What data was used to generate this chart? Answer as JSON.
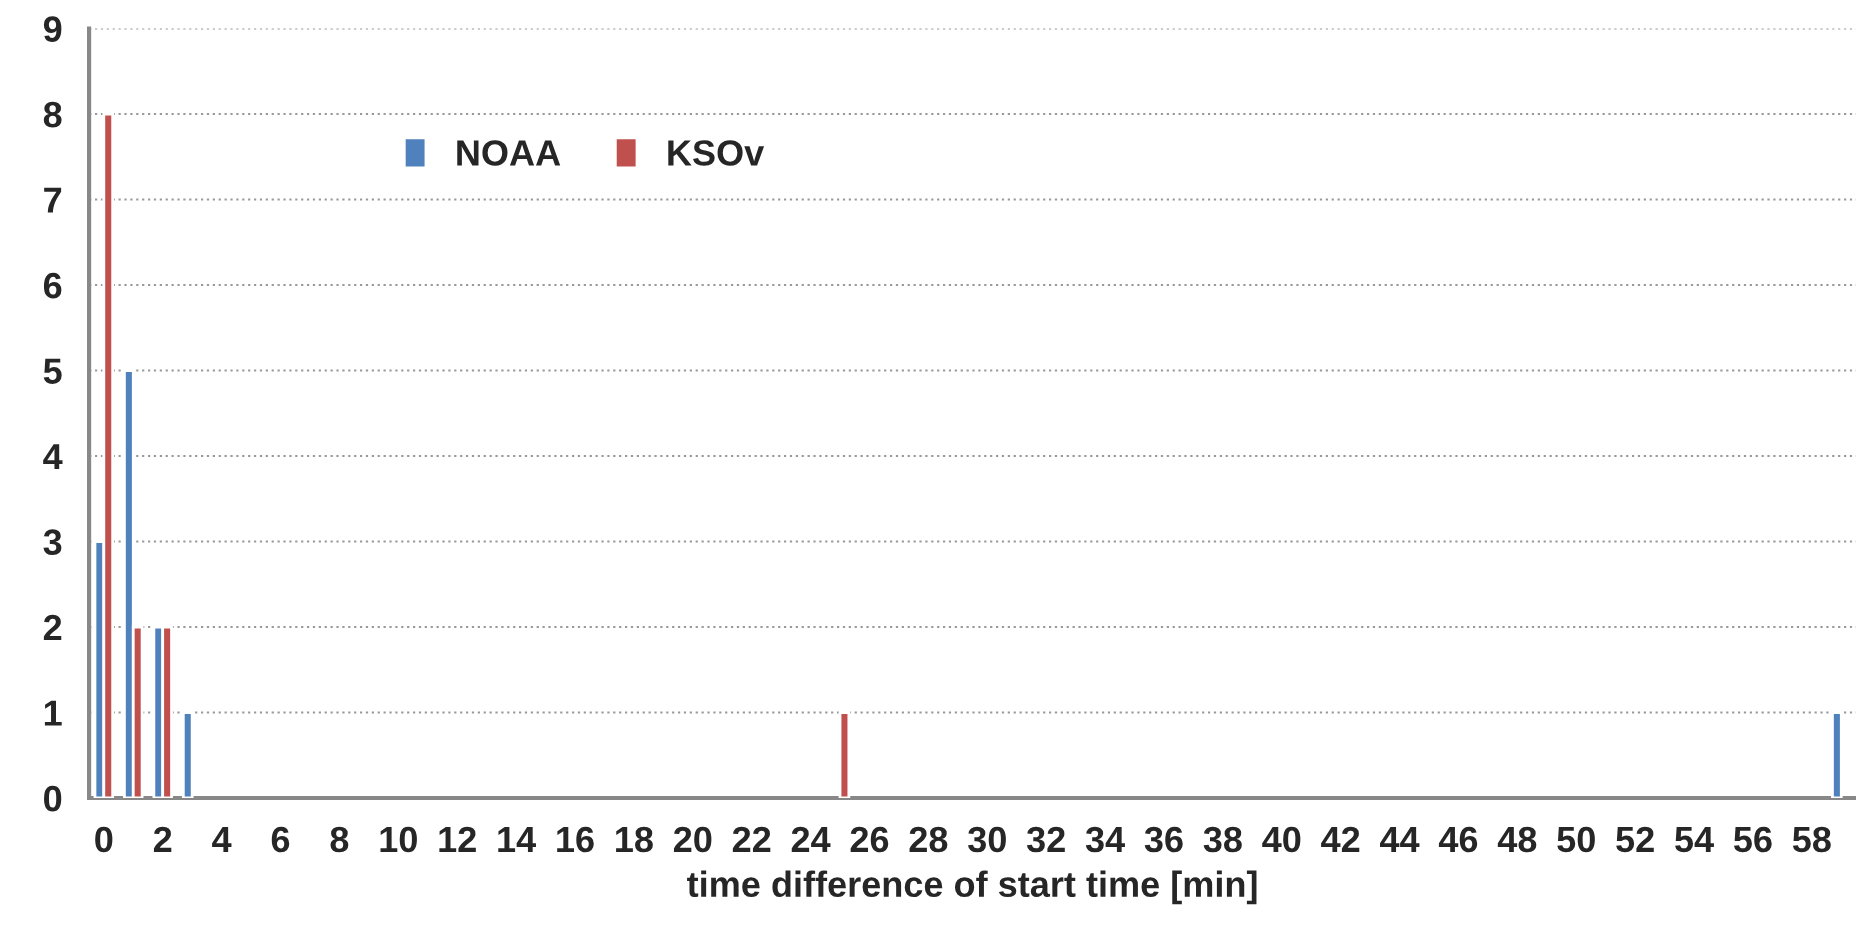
{
  "chart_data": {
    "type": "bar",
    "xlabel": "time difference of start time [min]",
    "categories": [
      "0",
      null,
      "2",
      null,
      "4",
      null,
      "6",
      null,
      "8",
      null,
      "10",
      null,
      "12",
      null,
      "14",
      null,
      "16",
      null,
      "18",
      null,
      "20",
      null,
      "22",
      null,
      "24",
      null,
      "26",
      null,
      "28",
      null,
      "30",
      null,
      "32",
      null,
      "34",
      null,
      "36",
      null,
      "38",
      null,
      "40",
      null,
      "42",
      null,
      "44",
      null,
      "46",
      null,
      "48",
      null,
      "50",
      null,
      "52",
      null,
      "54",
      null,
      "56",
      null,
      "58",
      null
    ],
    "series": [
      {
        "name": "NOAA",
        "color": "#4f81bd",
        "values": [
          3,
          5,
          2,
          1,
          0,
          0,
          0,
          0,
          0,
          0,
          0,
          0,
          0,
          0,
          0,
          0,
          0,
          0,
          0,
          0,
          0,
          0,
          0,
          0,
          0,
          0,
          0,
          0,
          0,
          0,
          0,
          0,
          0,
          0,
          0,
          0,
          0,
          0,
          0,
          0,
          0,
          0,
          0,
          0,
          0,
          0,
          0,
          0,
          0,
          0,
          0,
          0,
          0,
          0,
          0,
          0,
          0,
          0,
          0,
          1
        ]
      },
      {
        "name": "KSOv",
        "color": "#c0504d",
        "values": [
          8,
          2,
          2,
          0,
          0,
          0,
          0,
          0,
          0,
          0,
          0,
          0,
          0,
          0,
          0,
          0,
          0,
          0,
          0,
          0,
          0,
          0,
          0,
          0,
          0,
          1,
          0,
          0,
          0,
          0,
          0,
          0,
          0,
          0,
          0,
          0,
          0,
          0,
          0,
          0,
          0,
          0,
          0,
          0,
          0,
          0,
          0,
          0,
          0,
          0,
          0,
          0,
          0,
          0,
          0,
          0,
          0,
          0,
          0,
          0
        ]
      }
    ],
    "ylim": [
      0,
      9
    ],
    "yticks": [
      0,
      1,
      2,
      3,
      4,
      5,
      6,
      7,
      8,
      9
    ],
    "grid": "y",
    "legend": "top left"
  }
}
